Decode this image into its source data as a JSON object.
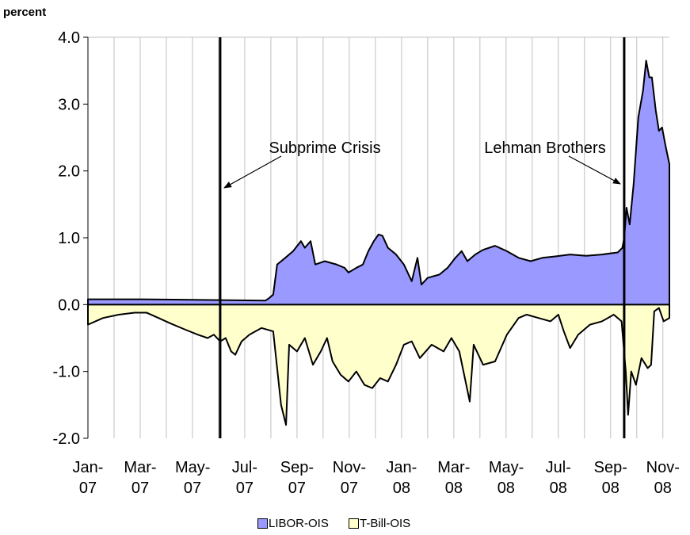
{
  "chart_data": {
    "type": "area",
    "y_label": "percent",
    "xlim": [
      0,
      22.25
    ],
    "ylim": [
      -2,
      4
    ],
    "yticks": [
      {
        "value": -2,
        "label": "-2.0"
      },
      {
        "value": -1,
        "label": "-1.0"
      },
      {
        "value": 0,
        "label": "0.0"
      },
      {
        "value": 1,
        "label": "1.0"
      },
      {
        "value": 2,
        "label": "2.0"
      },
      {
        "value": 3,
        "label": "3.0"
      },
      {
        "value": 4,
        "label": "4.0"
      }
    ],
    "xticks": [
      {
        "value": 0,
        "label": "Jan- 07"
      },
      {
        "value": 2,
        "label": "Mar- 07"
      },
      {
        "value": 4,
        "label": "May- 07"
      },
      {
        "value": 6,
        "label": "Jul- 07"
      },
      {
        "value": 8,
        "label": "Sep- 07"
      },
      {
        "value": 10,
        "label": "Nov- 07"
      },
      {
        "value": 12,
        "label": "Jan- 08"
      },
      {
        "value": 14,
        "label": "Mar- 08"
      },
      {
        "value": 16,
        "label": "May- 08"
      },
      {
        "value": 18,
        "label": "Jul- 08"
      },
      {
        "value": 20,
        "label": "Sep- 08"
      },
      {
        "value": 22,
        "label": "Nov- 08"
      }
    ],
    "xgrid": [
      0,
      1,
      2,
      3,
      4,
      5,
      6,
      7,
      8,
      9,
      10,
      11,
      12,
      13,
      14,
      15,
      16,
      17,
      18,
      19,
      20,
      21,
      22
    ],
    "events": [
      {
        "x": 5.06,
        "label": "Subprime Crisis"
      },
      {
        "x": 20.52,
        "label": "Lehman Brothers"
      }
    ],
    "legend": "bottom",
    "series": [
      {
        "name": "LIBOR-OIS",
        "color": "#9999ff",
        "x": [
          0,
          2.09,
          6.79,
          6.94,
          7.09,
          7.24,
          7.55,
          7.85,
          8.15,
          8.3,
          8.52,
          8.7,
          9.06,
          9.52,
          9.82,
          9.97,
          10.27,
          10.52,
          10.73,
          10.94,
          11.12,
          11.27,
          11.48,
          11.79,
          12.09,
          12.39,
          12.61,
          12.76,
          13,
          13.45,
          13.76,
          14.06,
          14.3,
          14.52,
          14.82,
          15.12,
          15.58,
          16.03,
          16.48,
          16.94,
          17.39,
          17.85,
          18.45,
          19.06,
          19.67,
          20.27,
          20.45,
          20.52,
          20.61,
          20.73,
          20.88,
          21.06,
          21.24,
          21.36,
          21.48,
          21.58,
          21.73,
          21.85,
          21.97,
          22.09,
          22.25
        ],
        "values": [
          0.08,
          0.08,
          0.06,
          0.1,
          0.15,
          0.6,
          0.7,
          0.8,
          0.95,
          0.85,
          0.95,
          0.6,
          0.65,
          0.6,
          0.55,
          0.48,
          0.55,
          0.6,
          0.8,
          0.95,
          1.05,
          1.03,
          0.85,
          0.75,
          0.6,
          0.35,
          0.7,
          0.3,
          0.4,
          0.45,
          0.55,
          0.7,
          0.8,
          0.65,
          0.75,
          0.82,
          0.88,
          0.8,
          0.7,
          0.65,
          0.7,
          0.72,
          0.75,
          0.73,
          0.75,
          0.78,
          0.85,
          1.0,
          1.45,
          1.2,
          1.8,
          2.8,
          3.2,
          3.65,
          3.4,
          3.4,
          2.9,
          2.6,
          2.65,
          2.4,
          2.1
        ]
      },
      {
        "name": "T-Bill-OIS",
        "color": "#ffffcc",
        "x": [
          0,
          0.58,
          1.18,
          1.79,
          2.24,
          2.7,
          3.15,
          3.76,
          4.21,
          4.58,
          4.82,
          5.06,
          5.27,
          5.48,
          5.64,
          5.88,
          6.18,
          6.64,
          7.09,
          7.39,
          7.58,
          7.7,
          8,
          8.3,
          8.61,
          8.91,
          9.15,
          9.36,
          9.67,
          9.97,
          10.27,
          10.58,
          10.88,
          11.18,
          11.48,
          11.79,
          12.09,
          12.39,
          12.7,
          13.15,
          13.61,
          13.91,
          14.21,
          14.61,
          14.76,
          15.12,
          15.58,
          16.03,
          16.48,
          16.79,
          17.24,
          17.7,
          18,
          18.21,
          18.45,
          18.76,
          19.21,
          19.67,
          20.12,
          20.42,
          20.58,
          20.67,
          20.79,
          20.97,
          21.18,
          21.42,
          21.55,
          21.67,
          21.85,
          22.03,
          22.25
        ],
        "values": [
          -0.3,
          -0.2,
          -0.15,
          -0.12,
          -0.12,
          -0.2,
          -0.28,
          -0.38,
          -0.45,
          -0.5,
          -0.45,
          -0.55,
          -0.5,
          -0.7,
          -0.75,
          -0.55,
          -0.45,
          -0.35,
          -0.4,
          -1.5,
          -1.8,
          -0.6,
          -0.7,
          -0.5,
          -0.9,
          -0.7,
          -0.5,
          -0.85,
          -1.05,
          -1.15,
          -1.0,
          -1.2,
          -1.25,
          -1.1,
          -1.15,
          -0.9,
          -0.6,
          -0.55,
          -0.8,
          -0.6,
          -0.7,
          -0.5,
          -0.7,
          -1.45,
          -0.6,
          -0.9,
          -0.85,
          -0.45,
          -0.2,
          -0.15,
          -0.2,
          -0.25,
          -0.15,
          -0.4,
          -0.65,
          -0.45,
          -0.3,
          -0.25,
          -0.15,
          -0.25,
          -1.0,
          -1.65,
          -1.0,
          -1.2,
          -0.8,
          -0.95,
          -0.9,
          -0.1,
          -0.05,
          -0.25,
          -0.2
        ]
      }
    ]
  }
}
